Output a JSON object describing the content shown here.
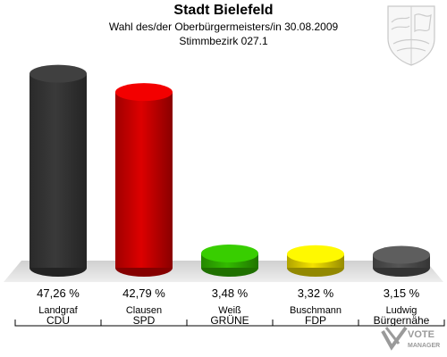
{
  "title": "Stadt Bielefeld",
  "subtitle": "Wahl des/der Oberbürgermeisters/in 30.08.2009",
  "subtitle2": "Stimmbezirk 027.1",
  "logo": {
    "text1": "VOTE",
    "text2": "MANAGER"
  },
  "chart_data": {
    "type": "bar",
    "title": "Stadt Bielefeld",
    "ylim": [
      0,
      50
    ],
    "grid": false,
    "legend": "none",
    "categories": [
      {
        "name": "Landgraf",
        "party": "CDU",
        "value": 47.26,
        "label": "47,26 %",
        "color": "#3a3a3a"
      },
      {
        "name": "Clausen",
        "party": "SPD",
        "value": 42.79,
        "label": "42,79 %",
        "color": "#dd0000"
      },
      {
        "name": "Weiß",
        "party": "GRÜNE",
        "value": 3.48,
        "label": "3,48 %",
        "color": "#33bb00"
      },
      {
        "name": "Buschmann",
        "party": "FDP",
        "value": 3.32,
        "label": "3,32 %",
        "color": "#f4e200"
      },
      {
        "name": "Ludwig",
        "party": "Bürgernähe",
        "value": 3.15,
        "label": "3,15 %",
        "color": "#555555"
      }
    ]
  }
}
